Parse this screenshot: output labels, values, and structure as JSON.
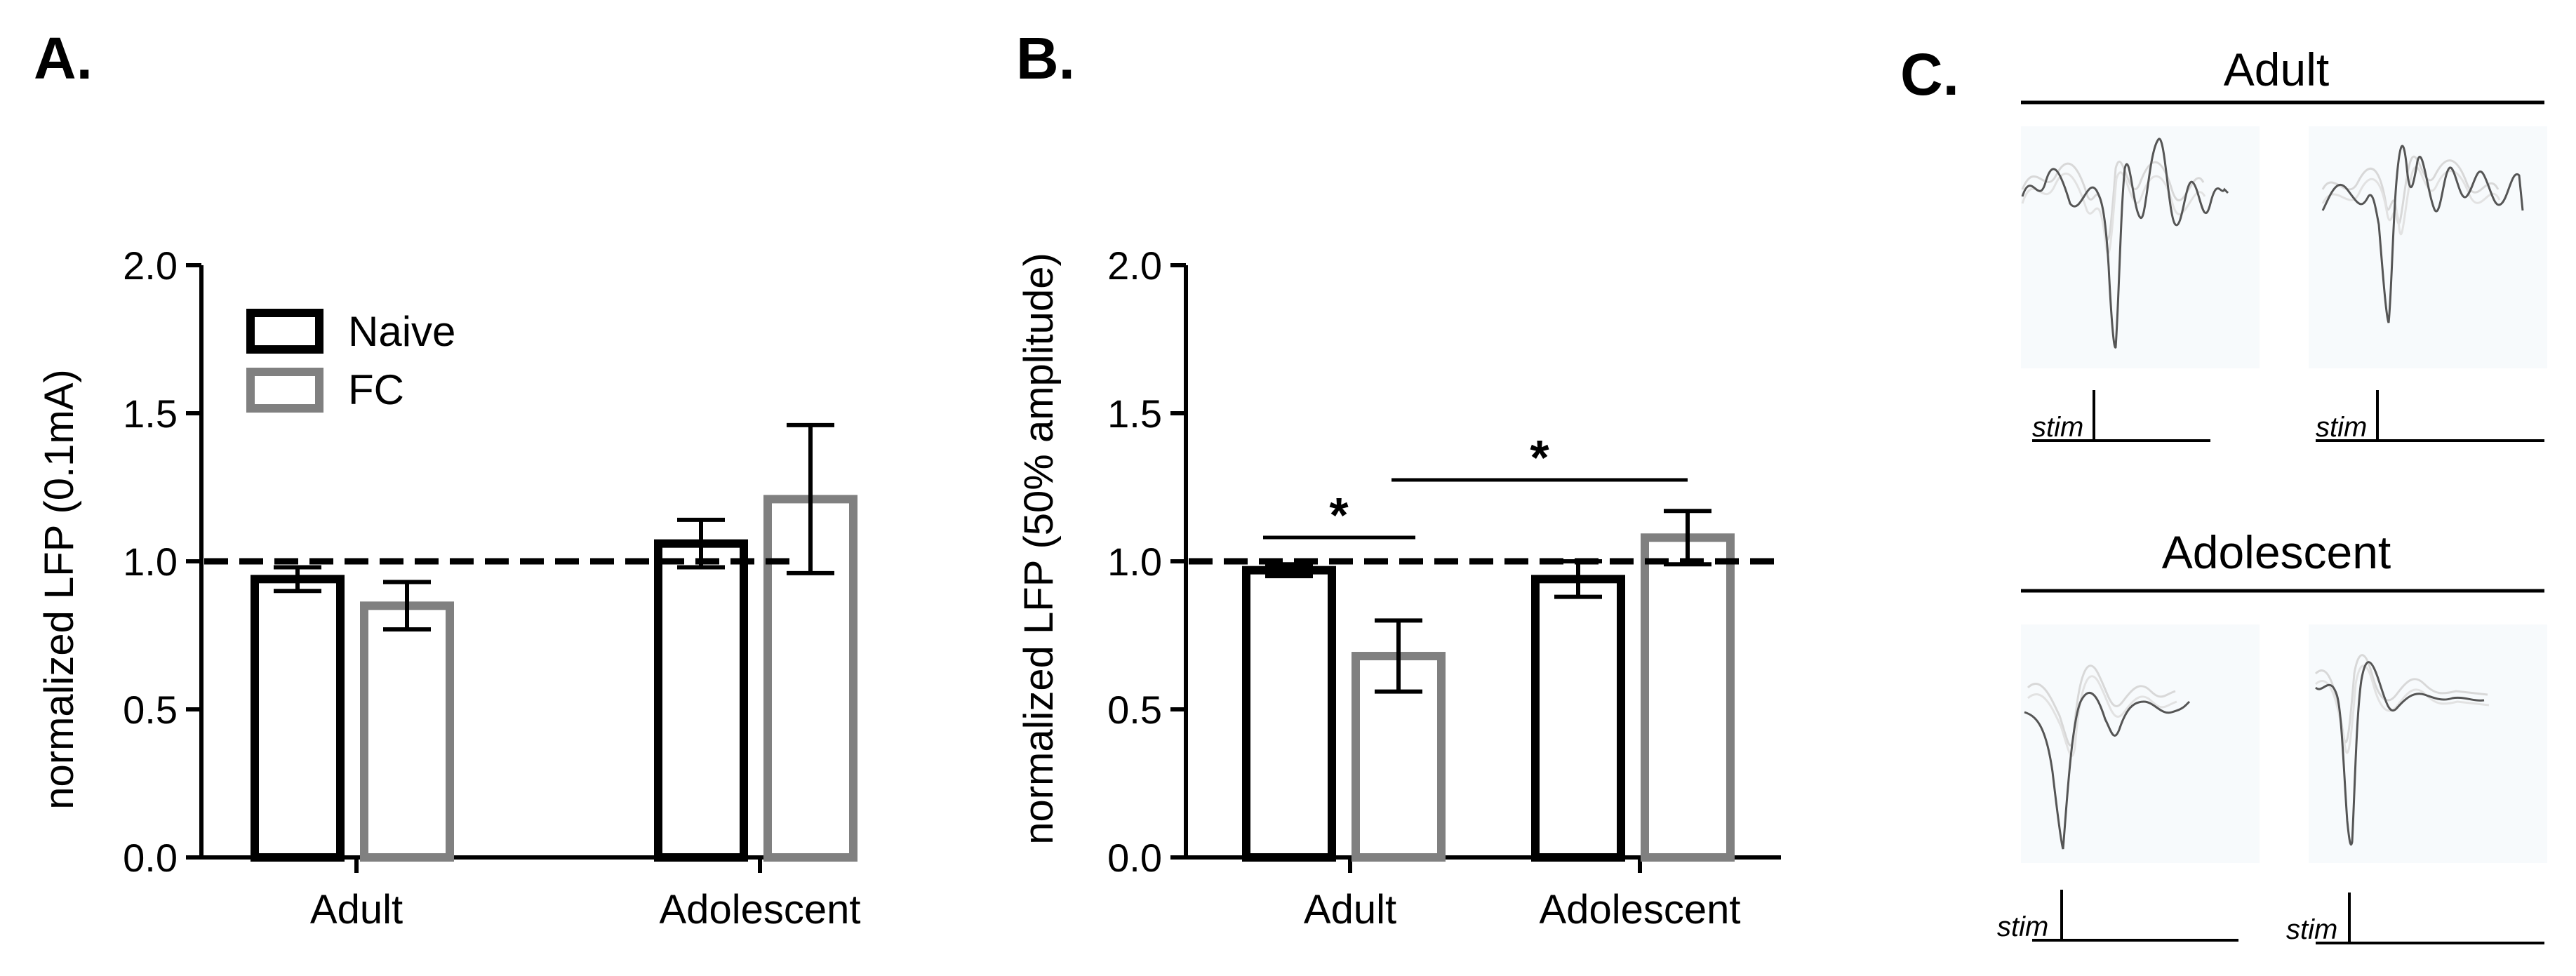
{
  "colors": {
    "naive": "#000000",
    "fc": "#808080",
    "trace": "#555555",
    "trace_faint": "#d8d8d8"
  },
  "legend": {
    "naive": "Naive",
    "fc": "FC"
  },
  "chart_data": [
    {
      "type": "bar",
      "panel": "A.",
      "title": "",
      "xlabel": "",
      "ylabel": "normalized LFP (0.1mA)",
      "ylim": [
        0,
        2.0
      ],
      "yticks": [
        "0.0",
        "0.5",
        "1.0",
        "1.5",
        "2.0"
      ],
      "reference_line": 1.0,
      "categories": [
        "Adult",
        "Adolescent"
      ],
      "series": [
        {
          "name": "Naive",
          "values": [
            0.94,
            1.06
          ],
          "errors": [
            0.04,
            0.08
          ]
        },
        {
          "name": "FC",
          "values": [
            0.85,
            1.21
          ],
          "errors": [
            0.08,
            0.25
          ]
        }
      ],
      "significance": []
    },
    {
      "type": "bar",
      "panel": "B.",
      "title": "",
      "xlabel": "",
      "ylabel": "normalized LFP (50% amplitude)",
      "ylim": [
        0,
        2.0
      ],
      "yticks": [
        "0.0",
        "0.5",
        "1.0",
        "1.5",
        "2.0"
      ],
      "reference_line": 1.0,
      "categories": [
        "Adult",
        "Adolescent"
      ],
      "series": [
        {
          "name": "Naive",
          "values": [
            0.97,
            0.94
          ],
          "errors": [
            0.02,
            0.06
          ]
        },
        {
          "name": "FC",
          "values": [
            0.68,
            1.08
          ],
          "errors": [
            0.12,
            0.09
          ]
        }
      ],
      "significance": [
        {
          "label": "*",
          "between": [
            "Adult Naive",
            "Adult FC"
          ]
        },
        {
          "label": "*",
          "between": [
            "Adult FC",
            "Adolescent FC"
          ]
        }
      ]
    }
  ],
  "panel_c": {
    "label": "C.",
    "groups": [
      {
        "title": "Adult",
        "traces": [
          {
            "stim_label": "stim"
          },
          {
            "stim_label": "stim"
          }
        ]
      },
      {
        "title": "Adolescent",
        "traces": [
          {
            "stim_label": "stim"
          },
          {
            "stim_label": "stim"
          }
        ]
      }
    ]
  }
}
